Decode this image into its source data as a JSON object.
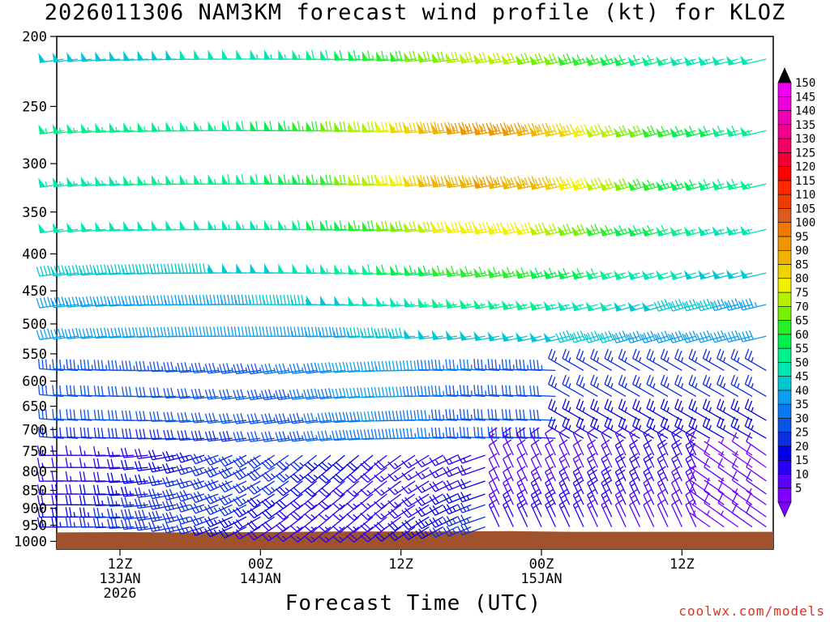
{
  "chart_data": {
    "type": "wind-barb-profile",
    "title": "2026011306 NAM3KM forecast wind profile (kt) for KLOZ",
    "xlabel": "Forecast Time (UTC)",
    "ylabel": "",
    "credit": "coolwx.com/models",
    "units": "kt",
    "y_axis": {
      "scale": "log-pressure",
      "range_hPa": [
        1025,
        200
      ],
      "ticks": [
        200,
        250,
        300,
        350,
        400,
        450,
        500,
        550,
        600,
        650,
        700,
        750,
        800,
        850,
        900,
        950,
        1000
      ]
    },
    "x_axis": {
      "range_hours": [
        7.5,
        58.5
      ],
      "ticks": [
        {
          "hour": 12,
          "lines": [
            "12Z",
            "13JAN",
            "2026"
          ]
        },
        {
          "hour": 22,
          "lines": [
            "00Z",
            "14JAN"
          ]
        },
        {
          "hour": 32,
          "lines": [
            "12Z"
          ]
        },
        {
          "hour": 42,
          "lines": [
            "00Z",
            "15JAN"
          ]
        },
        {
          "hour": 52,
          "lines": [
            "12Z"
          ]
        }
      ]
    },
    "terrain_surface_hPa": [
      {
        "hour": 7.5,
        "p": 972
      },
      {
        "hour": 12,
        "p": 971
      },
      {
        "hour": 16,
        "p": 972
      },
      {
        "hour": 22,
        "p": 971
      },
      {
        "hour": 28,
        "p": 969
      },
      {
        "hour": 34,
        "p": 969
      },
      {
        "hour": 40,
        "p": 968
      },
      {
        "hour": 44,
        "p": 970
      },
      {
        "hour": 50,
        "p": 970
      },
      {
        "hour": 58.5,
        "p": 970
      }
    ],
    "levels_hPa": [
      215,
      270,
      320,
      370,
      425,
      470,
      520,
      580,
      630,
      680,
      720,
      760,
      790,
      825,
      860,
      890,
      925,
      955
    ],
    "time_hours": [
      8,
      9,
      10,
      11,
      12,
      13,
      14,
      15,
      16,
      17,
      18,
      19,
      20,
      21,
      22,
      23,
      24,
      25,
      26,
      27,
      28,
      29,
      30,
      31,
      32,
      33,
      34,
      35,
      36,
      37,
      38,
      39,
      40,
      41,
      42,
      43,
      44,
      45,
      46,
      47,
      48,
      49,
      50,
      51,
      52,
      53,
      54,
      55,
      56,
      57,
      58
    ],
    "jet_core": {
      "hour": 39,
      "pressure_hPa": 290,
      "speed_kt": 100
    },
    "colorbar": {
      "levels": [
        5,
        10,
        15,
        20,
        25,
        30,
        35,
        40,
        45,
        50,
        55,
        60,
        65,
        70,
        75,
        80,
        85,
        90,
        95,
        100,
        105,
        110,
        115,
        120,
        125,
        130,
        135,
        140,
        145,
        150
      ],
      "colors": [
        "#7f00ff",
        "#5a00ff",
        "#2a00f5",
        "#0000e6",
        "#0a2ee0",
        "#0a55e8",
        "#0a78f0",
        "#0aa0f0",
        "#00c8d2",
        "#00e6b4",
        "#00f08c",
        "#00f050",
        "#28f028",
        "#78f000",
        "#b4f000",
        "#f0f000",
        "#f0d200",
        "#f0b400",
        "#f09600",
        "#f07800",
        "#dc5a1e",
        "#f03c00",
        "#ff2800",
        "#ff0000",
        "#f00032",
        "#f00064",
        "#f0008c",
        "#f000b4",
        "#f000dc",
        "#f000f0"
      ],
      "below_color": "#7f00ff",
      "above_color": "#000000"
    }
  }
}
